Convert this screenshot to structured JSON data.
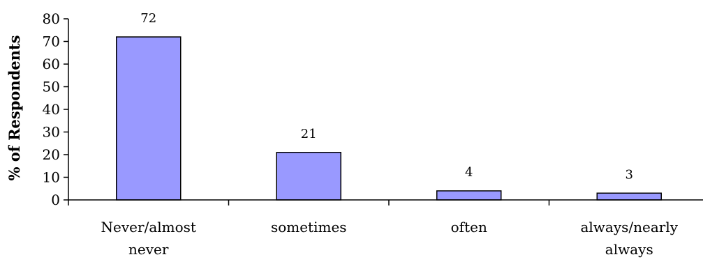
{
  "chart_data": {
    "type": "bar",
    "categories": [
      [
        "Never/almost",
        "never"
      ],
      [
        "sometimes"
      ],
      [
        "often"
      ],
      [
        "always/nearly",
        "always"
      ]
    ],
    "values": [
      72,
      21,
      4,
      3
    ],
    "data_labels": [
      "72",
      "21",
      "4",
      "3"
    ],
    "title": "",
    "xlabel": "",
    "ylabel": "% of Respondents",
    "ylim": [
      0,
      80
    ],
    "yticks": [
      0,
      10,
      20,
      30,
      40,
      50,
      60,
      70,
      80
    ],
    "grid": false,
    "legend": "none",
    "bar_color": "#9999ff",
    "bar_edge_color": "#000000"
  }
}
